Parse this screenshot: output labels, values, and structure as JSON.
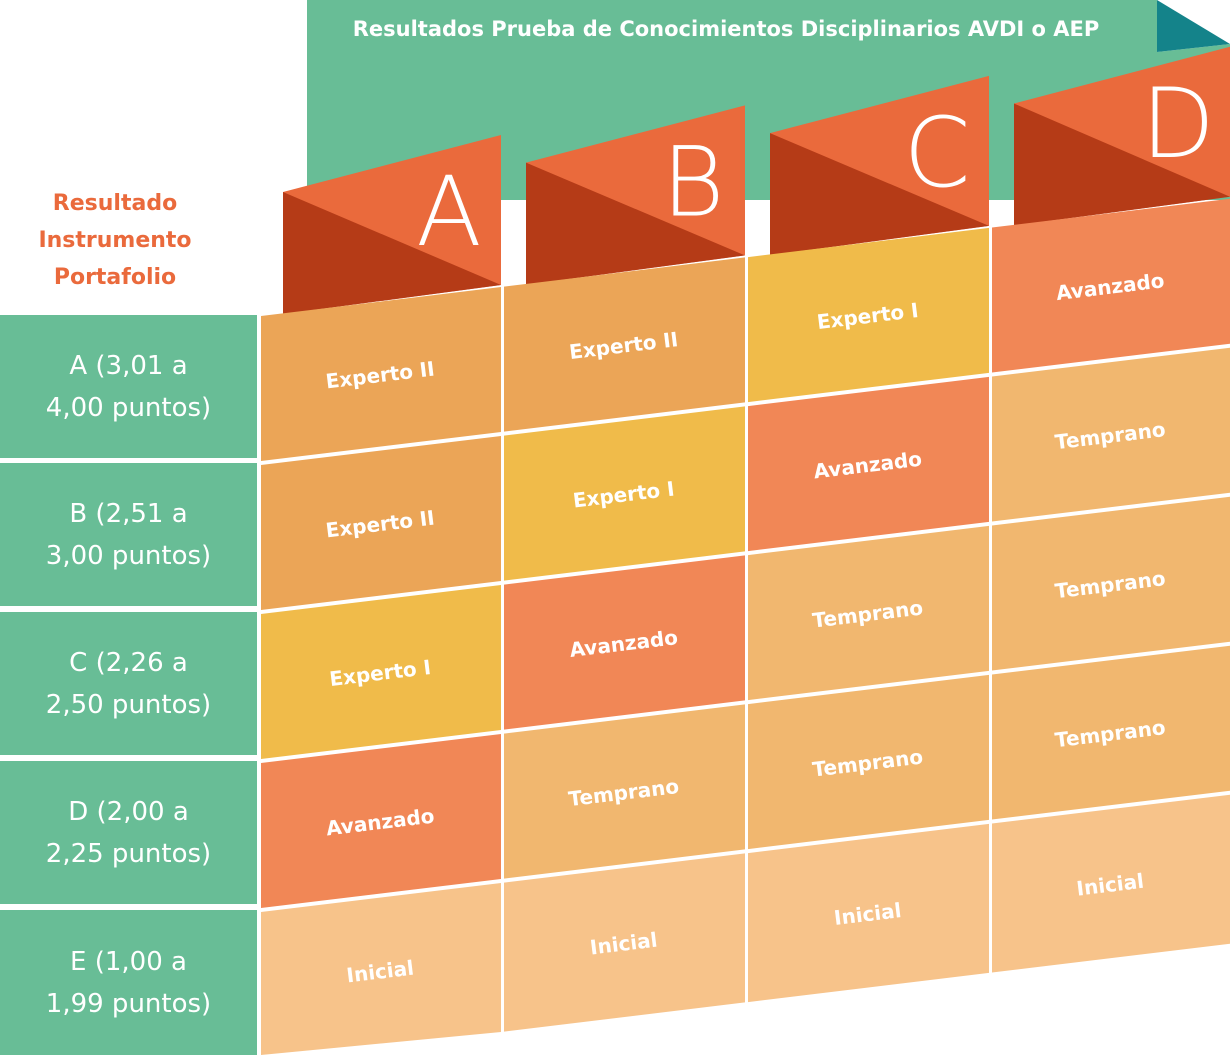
{
  "header": {
    "title": "Resultados Prueba de Conocimientos Disciplinarios AVDI o AEP"
  },
  "row_header": {
    "line1": "Resultado",
    "line2": "Instrumento",
    "line3": "Portafolio"
  },
  "columns": [
    {
      "letter": "A"
    },
    {
      "letter": "B"
    },
    {
      "letter": "C"
    },
    {
      "letter": "D"
    }
  ],
  "rows": [
    {
      "line1": "A (3,01 a",
      "line2": "4,00 puntos)"
    },
    {
      "line1": "B (2,51 a",
      "line2": "3,00 puntos)"
    },
    {
      "line1": "C (2,26 a",
      "line2": "2,50 puntos)"
    },
    {
      "line1": "D (2,00 a",
      "line2": "2,25 puntos)"
    },
    {
      "line1": "E (1,00 a",
      "line2": "1,99 puntos)"
    }
  ],
  "matrix": [
    [
      "Experto II",
      "Experto II",
      "Experto I",
      "Avanzado"
    ],
    [
      "Experto II",
      "Experto I",
      "Avanzado",
      "Temprano"
    ],
    [
      "Experto I",
      "Avanzado",
      "Temprano",
      "Temprano"
    ],
    [
      "Avanzado",
      "Temprano",
      "Temprano",
      "Temprano"
    ],
    [
      "Inicial",
      "Inicial",
      "Inicial",
      "Inicial"
    ]
  ],
  "colors": {
    "green": "#68bd96",
    "teal": "#14838a",
    "orange_light": "#ea6a3c",
    "orange_dark": "#b53b17",
    "Experto II": "#eba557",
    "Experto I": "#f0bb4a",
    "Avanzado": "#f18756",
    "Temprano": "#f1b76f",
    "Inicial": "#f7c38a"
  }
}
